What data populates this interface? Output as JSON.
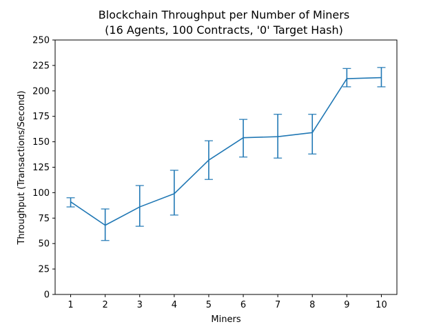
{
  "chart_data": {
    "type": "line",
    "title": "Blockchain Throughput per Number of Miners",
    "subtitle": "(16 Agents, 100 Contracts, '0' Target Hash)",
    "xlabel": "Miners",
    "ylabel": "Throughput (Transactions/Second)",
    "x": [
      1,
      2,
      3,
      4,
      5,
      6,
      7,
      8,
      9,
      10
    ],
    "x_ticks": [
      "1",
      "2",
      "3",
      "4",
      "5",
      "6",
      "7",
      "8",
      "9",
      "10"
    ],
    "ylim": [
      0,
      250
    ],
    "y_ticks": [
      0,
      25,
      50,
      75,
      100,
      125,
      150,
      175,
      200,
      225,
      250
    ],
    "grid": false,
    "series": [
      {
        "values": [
          91,
          68,
          86,
          99,
          132,
          154,
          155,
          159,
          212,
          213
        ],
        "error_upper": [
          95,
          84,
          107,
          122,
          151,
          172,
          177,
          177,
          222,
          223
        ],
        "error_lower": [
          86,
          53,
          67,
          78,
          113,
          135,
          134,
          138,
          204,
          204
        ],
        "color": "#1f77b4"
      }
    ]
  }
}
